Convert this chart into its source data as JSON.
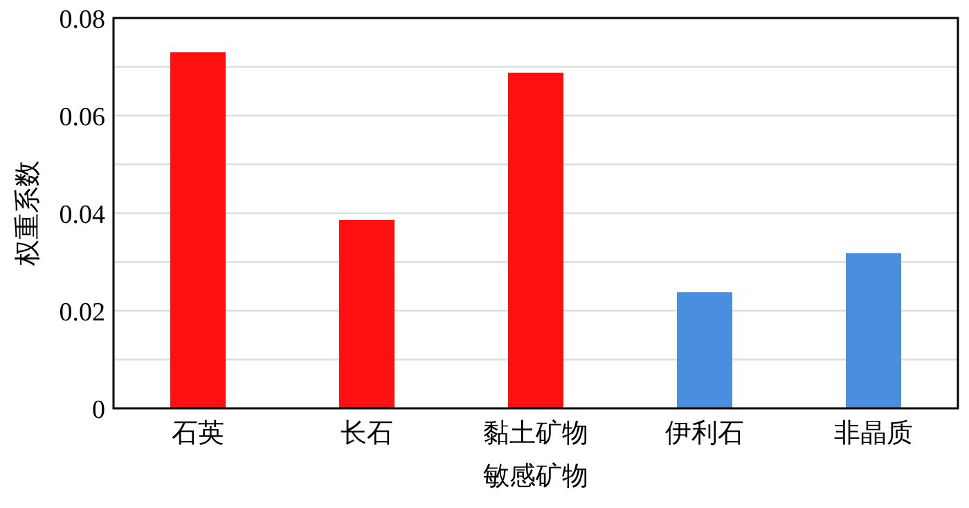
{
  "chart_data": {
    "type": "bar",
    "xlabel": "敏感矿物",
    "ylabel": "权重系数",
    "categories": [
      "石英",
      "长石",
      "黏土矿物",
      "伊利石",
      "非晶质"
    ],
    "values": [
      0.073,
      0.0386,
      0.0688,
      0.0238,
      0.0318
    ],
    "colors": [
      "#ff1010",
      "#ff1010",
      "#ff1010",
      "#4a8ee0",
      "#4a8ee0"
    ],
    "ylim": [
      0,
      0.08
    ],
    "yticks": [
      0,
      {
        "value": 0.01,
        "label": null
      },
      0.02,
      {
        "value": 0.03,
        "label": null
      },
      0.04,
      {
        "value": 0.05,
        "label": null
      },
      0.06,
      {
        "value": 0.07,
        "label": null
      },
      0.08
    ],
    "grid": "y"
  }
}
